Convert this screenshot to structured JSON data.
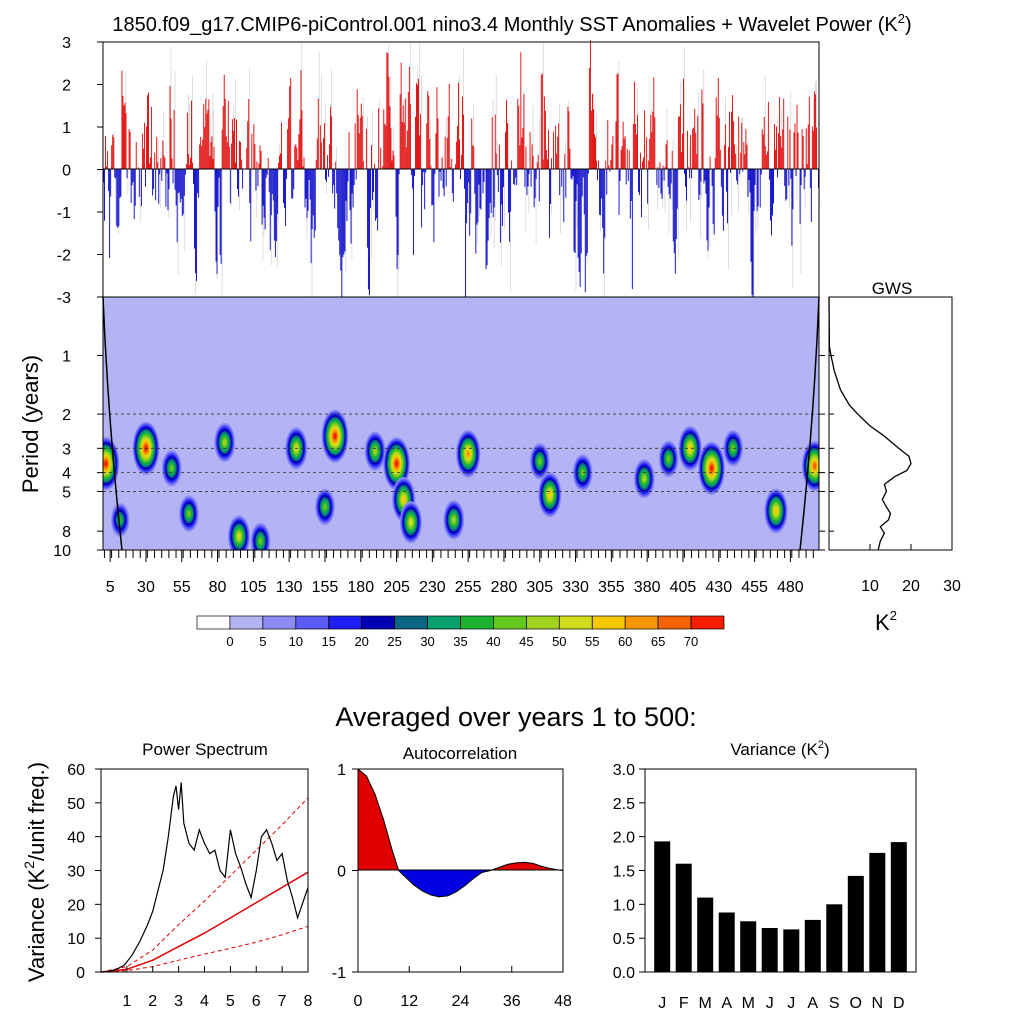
{
  "figure": {
    "title": "1850.f09_g17.CMIP6-piControl.001 nino3.4 Monthly SST Anomalies + Wavelet Power (K",
    "title_sup": "2",
    "title_close": ")",
    "bottom_title": "Averaged over years 1 to 500:"
  },
  "colors": {
    "positive": "#e00000",
    "negative": "#0000c8",
    "wavelet_background": "#b4b4f5",
    "spectrum_line": "#000000",
    "red_noise": "#e00000",
    "bar": "#000000"
  },
  "chart_data": [
    {
      "id": "anomaly",
      "type": "bar",
      "title": "Monthly SST Anomalies",
      "ylim": [
        -3,
        3
      ],
      "yticks": [
        3,
        2,
        1,
        0,
        -1,
        -2,
        -3
      ],
      "xlim": [
        0,
        500
      ],
      "n_months": 6000,
      "positive_color": "red",
      "negative_color": "blue",
      "approx_range": [
        -3,
        3
      ]
    },
    {
      "id": "wavelet",
      "type": "heatmap",
      "title": "Wavelet Power (K2)",
      "ylabel": "Period (years)",
      "yscale": "log",
      "ylim": [
        0.5,
        10
      ],
      "yticks": [
        1,
        2,
        3,
        4,
        5,
        8,
        10
      ],
      "dashed_periods": [
        2,
        3,
        4,
        5
      ],
      "xlim": [
        0,
        500
      ],
      "xticks": [
        5,
        30,
        55,
        80,
        105,
        130,
        155,
        180,
        205,
        230,
        255,
        280,
        305,
        330,
        355,
        380,
        405,
        430,
        455,
        480
      ],
      "hotspots": [
        {
          "year": 2,
          "period": 3.6,
          "power": 70
        },
        {
          "year": 12,
          "period": 7.0,
          "power": 35
        },
        {
          "year": 30,
          "period": 3.0,
          "power": 70
        },
        {
          "year": 48,
          "period": 3.8,
          "power": 40
        },
        {
          "year": 60,
          "period": 6.5,
          "power": 40
        },
        {
          "year": 85,
          "period": 2.8,
          "power": 45
        },
        {
          "year": 95,
          "period": 8.5,
          "power": 50
        },
        {
          "year": 110,
          "period": 9.0,
          "power": 40
        },
        {
          "year": 135,
          "period": 3.0,
          "power": 50
        },
        {
          "year": 155,
          "period": 6.0,
          "power": 40
        },
        {
          "year": 162,
          "period": 2.6,
          "power": 70
        },
        {
          "year": 190,
          "period": 3.1,
          "power": 45
        },
        {
          "year": 205,
          "period": 3.6,
          "power": 70
        },
        {
          "year": 210,
          "period": 5.5,
          "power": 55
        },
        {
          "year": 215,
          "period": 7.2,
          "power": 50
        },
        {
          "year": 245,
          "period": 7.0,
          "power": 45
        },
        {
          "year": 255,
          "period": 3.2,
          "power": 60
        },
        {
          "year": 305,
          "period": 3.5,
          "power": 40
        },
        {
          "year": 312,
          "period": 5.2,
          "power": 55
        },
        {
          "year": 335,
          "period": 4.0,
          "power": 40
        },
        {
          "year": 378,
          "period": 4.3,
          "power": 45
        },
        {
          "year": 395,
          "period": 3.4,
          "power": 40
        },
        {
          "year": 410,
          "period": 3.0,
          "power": 55
        },
        {
          "year": 425,
          "period": 3.8,
          "power": 70
        },
        {
          "year": 440,
          "period": 3.0,
          "power": 40
        },
        {
          "year": 470,
          "period": 6.3,
          "power": 55
        },
        {
          "year": 497,
          "period": 3.7,
          "power": 65
        }
      ]
    },
    {
      "id": "gws",
      "type": "line",
      "title": "GWS",
      "xlabel": "K",
      "xlabel_sup": "2",
      "xlim": [
        0,
        30
      ],
      "xticks": [
        10,
        20,
        30
      ],
      "ylim": [
        0.5,
        10
      ],
      "period": [
        0.5,
        0.9,
        1.0,
        1.2,
        1.5,
        1.8,
        2.0,
        2.3,
        2.6,
        3.0,
        3.3,
        3.6,
        3.9,
        4.2,
        4.6,
        5.0,
        5.5,
        6.0,
        6.5,
        7.0,
        7.6,
        8.2,
        9.0,
        10.0
      ],
      "power": [
        0.0,
        0.1,
        0.5,
        1.3,
        2.8,
        5.0,
        7.0,
        10.0,
        13.5,
        17.0,
        19.5,
        20.0,
        19.0,
        16.0,
        13.5,
        14.0,
        13.0,
        14.0,
        15.0,
        14.5,
        12.5,
        13.5,
        12.5,
        12.0
      ]
    },
    {
      "id": "colorbar",
      "type": "table",
      "labels": [
        "0",
        "5",
        "10",
        "15",
        "20",
        "25",
        "30",
        "35",
        "40",
        "45",
        "50",
        "55",
        "60",
        "65",
        "70"
      ],
      "colors": [
        "#ffffff",
        "#b4b4f5",
        "#8c8cf5",
        "#5a5af5",
        "#1e1ef5",
        "#0000b4",
        "#0a6482",
        "#0a9f6e",
        "#1eb432",
        "#64c81e",
        "#a0d21e",
        "#d2dc1e",
        "#f5c800",
        "#f59600",
        "#f56400",
        "#f51e00"
      ]
    },
    {
      "id": "power_spectrum",
      "type": "line",
      "title": "Power Spectrum",
      "ylabel": "Variance (K",
      "ylabel_sup": "2",
      "ylabel_end": "/unit freq.)",
      "xlim": [
        0,
        8
      ],
      "ylim": [
        0,
        60
      ],
      "xticks": [
        1,
        2,
        3,
        4,
        5,
        6,
        7,
        8
      ],
      "yticks": [
        0,
        10,
        20,
        30,
        40,
        50,
        60
      ],
      "series": [
        {
          "name": "spectrum",
          "x": [
            0.0,
            0.3,
            0.6,
            0.9,
            1.2,
            1.5,
            1.8,
            2.0,
            2.2,
            2.4,
            2.6,
            2.8,
            2.9,
            3.0,
            3.1,
            3.2,
            3.4,
            3.6,
            3.8,
            4.0,
            4.2,
            4.4,
            4.6,
            4.8,
            5.0,
            5.2,
            5.4,
            5.6,
            5.8,
            6.0,
            6.2,
            6.4,
            6.6,
            6.8,
            7.0,
            7.2,
            7.4,
            7.6,
            8.0
          ],
          "y": [
            0.0,
            0.2,
            0.8,
            2.0,
            5.0,
            9.0,
            14.0,
            18.0,
            24.0,
            30.0,
            40.0,
            52.0,
            55.0,
            48.0,
            56.0,
            44.0,
            38.0,
            36.0,
            42.0,
            38.0,
            35.0,
            36.0,
            30.0,
            28.0,
            42.0,
            35.0,
            31.0,
            26.0,
            22.0,
            30.0,
            40.0,
            42.0,
            38.0,
            33.0,
            35.0,
            27.0,
            22.0,
            16.0,
            25.0
          ]
        },
        {
          "name": "red-noise",
          "x": [
            0,
            1,
            2,
            3,
            4,
            5,
            6,
            7,
            8
          ],
          "y": [
            0.0,
            0.8,
            3.5,
            7.5,
            11.5,
            16.0,
            20.5,
            25.0,
            29.5
          ]
        },
        {
          "name": "upper",
          "x": [
            0,
            1,
            2,
            3,
            4,
            5,
            6,
            7,
            8
          ],
          "y": [
            0.0,
            1.6,
            6.5,
            14.0,
            21.0,
            28.5,
            36.0,
            43.5,
            51.5
          ]
        },
        {
          "name": "lower",
          "x": [
            0,
            1,
            2,
            3,
            4,
            5,
            6,
            7,
            8
          ],
          "y": [
            0.0,
            0.4,
            1.6,
            3.5,
            5.3,
            7.0,
            8.8,
            11.0,
            13.5
          ]
        }
      ]
    },
    {
      "id": "autocorrelation",
      "type": "area",
      "title": "Autocorrelation",
      "xlim": [
        0,
        48
      ],
      "ylim": [
        -1,
        1
      ],
      "xticks": [
        0,
        12,
        24,
        36,
        48
      ],
      "yticks": [
        1,
        0,
        -1
      ],
      "x": [
        0,
        2,
        4,
        6,
        8,
        9.5,
        11,
        13,
        15,
        17,
        19,
        21,
        23,
        25,
        27,
        29,
        31,
        33,
        35,
        37,
        39,
        41,
        43,
        45,
        47,
        48
      ],
      "y": [
        1.0,
        0.93,
        0.75,
        0.5,
        0.2,
        0.0,
        -0.06,
        -0.14,
        -0.2,
        -0.24,
        -0.26,
        -0.25,
        -0.21,
        -0.15,
        -0.08,
        -0.02,
        0.0,
        0.03,
        0.06,
        0.075,
        0.08,
        0.07,
        0.04,
        0.02,
        0.005,
        0.0
      ]
    },
    {
      "id": "variance",
      "type": "bar",
      "title": "Variance (K",
      "title_sup": "2",
      "title_close": ")",
      "categories": [
        "J",
        "F",
        "M",
        "A",
        "M",
        "J",
        "J",
        "A",
        "S",
        "O",
        "N",
        "D"
      ],
      "values": [
        1.93,
        1.6,
        1.1,
        0.88,
        0.75,
        0.65,
        0.63,
        0.77,
        1.0,
        1.42,
        1.76,
        1.92
      ],
      "ylim": [
        0,
        3
      ],
      "yticks": [
        "0.0",
        "0.5",
        "1.0",
        "1.5",
        "2.0",
        "2.5",
        "3.0"
      ]
    }
  ]
}
